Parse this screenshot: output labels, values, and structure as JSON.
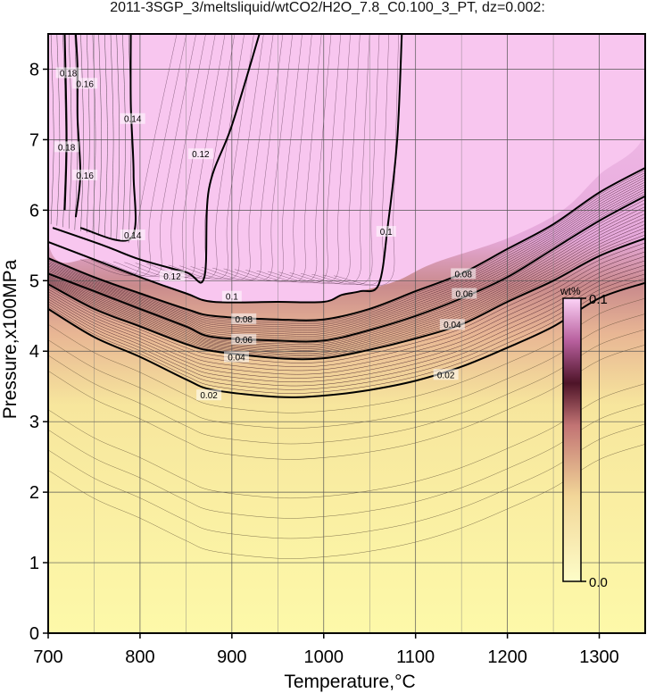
{
  "title": "2011-3SGP_3/meltsliquid/wtCO2/H2O_7.8_C0.100_3_PT, dz=0.002:",
  "chart_data": {
    "type": "heatmap",
    "xlabel": "Temperature,°C",
    "ylabel": "Pressure,x100MPa",
    "xlim": [
      700,
      1350
    ],
    "ylim": [
      0,
      8.5
    ],
    "x_ticks": [
      "700",
      "800",
      "900",
      "1000",
      "1100",
      "1200",
      "1300"
    ],
    "y_ticks": [
      "0",
      "1",
      "2",
      "3",
      "4",
      "5",
      "6",
      "7",
      "8"
    ],
    "grid": true,
    "colorbar": {
      "label": "wt%",
      "min_label": "0.0",
      "max_label": "0.1",
      "range": [
        0.0,
        0.1
      ],
      "colors": [
        "#f8f8a8",
        "#eec58e",
        "#c87c78",
        "#5a1a30",
        "#c878b8",
        "#f8c8f0"
      ]
    },
    "background_colors": {
      "low": "#fdf9a9",
      "mid": "#e8b694",
      "high": "#f6c4ee"
    },
    "contours": [
      {
        "level": 0.02,
        "label": "0.02",
        "points": [
          [
            700,
            4.6
          ],
          [
            750,
            4.2
          ],
          [
            800,
            3.92
          ],
          [
            850,
            3.6
          ],
          [
            880,
            3.45
          ],
          [
            950,
            3.35
          ],
          [
            1000,
            3.37
          ],
          [
            1050,
            3.45
          ],
          [
            1100,
            3.58
          ],
          [
            1150,
            3.78
          ],
          [
            1200,
            4.05
          ],
          [
            1250,
            4.35
          ],
          [
            1300,
            4.75
          ],
          [
            1350,
            4.97
          ]
        ]
      },
      {
        "level": 0.04,
        "label": "0.04",
        "points": [
          [
            700,
            4.95
          ],
          [
            750,
            4.6
          ],
          [
            800,
            4.35
          ],
          [
            850,
            4.1
          ],
          [
            880,
            4.0
          ],
          [
            950,
            3.9
          ],
          [
            1000,
            3.9
          ],
          [
            1050,
            4.02
          ],
          [
            1100,
            4.18
          ],
          [
            1150,
            4.38
          ],
          [
            1200,
            4.7
          ],
          [
            1250,
            5.0
          ],
          [
            1300,
            5.35
          ],
          [
            1350,
            5.6
          ]
        ]
      },
      {
        "level": 0.06,
        "label": "0.06",
        "points": [
          [
            700,
            5.1
          ],
          [
            750,
            4.85
          ],
          [
            800,
            4.6
          ],
          [
            850,
            4.35
          ],
          [
            880,
            4.2
          ],
          [
            950,
            4.15
          ],
          [
            1000,
            4.15
          ],
          [
            1050,
            4.3
          ],
          [
            1100,
            4.5
          ],
          [
            1150,
            4.75
          ],
          [
            1200,
            5.05
          ],
          [
            1250,
            5.45
          ],
          [
            1300,
            5.85
          ],
          [
            1350,
            6.2
          ]
        ]
      },
      {
        "level": 0.08,
        "label": "0.08",
        "points": [
          [
            700,
            5.32
          ],
          [
            750,
            5.05
          ],
          [
            800,
            4.82
          ],
          [
            850,
            4.6
          ],
          [
            880,
            4.5
          ],
          [
            950,
            4.45
          ],
          [
            1000,
            4.45
          ],
          [
            1050,
            4.6
          ],
          [
            1100,
            4.85
          ],
          [
            1150,
            5.1
          ],
          [
            1200,
            5.45
          ],
          [
            1250,
            5.8
          ],
          [
            1300,
            6.25
          ],
          [
            1350,
            6.6
          ]
        ]
      },
      {
        "level": 0.1,
        "label": "0.1",
        "points": [
          [
            700,
            5.55
          ],
          [
            750,
            5.3
          ],
          [
            800,
            5.05
          ],
          [
            850,
            4.82
          ],
          [
            880,
            4.7
          ],
          [
            950,
            4.7
          ],
          [
            1000,
            4.7
          ],
          [
            1020,
            4.8
          ],
          [
            1040,
            4.85
          ],
          [
            1060,
            4.95
          ],
          [
            1070,
            5.8
          ],
          [
            1080,
            7.0
          ],
          [
            1085,
            8.5
          ]
        ]
      },
      {
        "level": 0.12,
        "label": "0.12",
        "points": [
          [
            705,
            5.75
          ],
          [
            760,
            5.5
          ],
          [
            800,
            5.3
          ],
          [
            850,
            5.12
          ],
          [
            870,
            5.05
          ],
          [
            875,
            6.3
          ],
          [
            900,
            7.2
          ],
          [
            930,
            8.5
          ]
        ]
      },
      {
        "level": 0.14,
        "label": "0.14",
        "points": [
          [
            735,
            5.75
          ],
          [
            790,
            5.6
          ],
          [
            793,
            6.5
          ],
          [
            790,
            7.5
          ],
          [
            790,
            8.5
          ]
        ]
      },
      {
        "level": 0.16,
        "label": "0.16",
        "points": [
          [
            730,
            5.9
          ],
          [
            735,
            6.5
          ],
          [
            732,
            7.3
          ],
          [
            732,
            8.0
          ],
          [
            730,
            8.5
          ]
        ]
      },
      {
        "level": 0.18,
        "label": "0.18",
        "points": [
          [
            718,
            6.0
          ],
          [
            720,
            7.0
          ],
          [
            718,
            8.5
          ]
        ]
      }
    ],
    "contour_labels": [
      {
        "text": "0.02",
        "x": 875,
        "y": 3.38
      },
      {
        "text": "0.04",
        "x": 905,
        "y": 3.92
      },
      {
        "text": "0.06",
        "x": 913,
        "y": 4.17
      },
      {
        "text": "0.08",
        "x": 913,
        "y": 4.46
      },
      {
        "text": "0.1",
        "x": 900,
        "y": 4.78
      },
      {
        "text": "0.12",
        "x": 835,
        "y": 5.07
      },
      {
        "text": "0.08",
        "x": 1152,
        "y": 5.1
      },
      {
        "text": "0.06",
        "x": 1153,
        "y": 4.82
      },
      {
        "text": "0.04",
        "x": 1140,
        "y": 4.38
      },
      {
        "text": "0.02",
        "x": 1133,
        "y": 3.67
      },
      {
        "text": "0.1",
        "x": 1068,
        "y": 5.7
      },
      {
        "text": "0.12",
        "x": 866,
        "y": 6.8
      },
      {
        "text": "0.14",
        "x": 792,
        "y": 5.65
      },
      {
        "text": "0.14",
        "x": 792,
        "y": 7.3
      },
      {
        "text": "0.16",
        "x": 740,
        "y": 6.5
      },
      {
        "text": "0.16",
        "x": 740,
        "y": 7.8
      },
      {
        "text": "0.18",
        "x": 720,
        "y": 6.9
      },
      {
        "text": "0.18",
        "x": 722,
        "y": 7.95
      }
    ]
  }
}
